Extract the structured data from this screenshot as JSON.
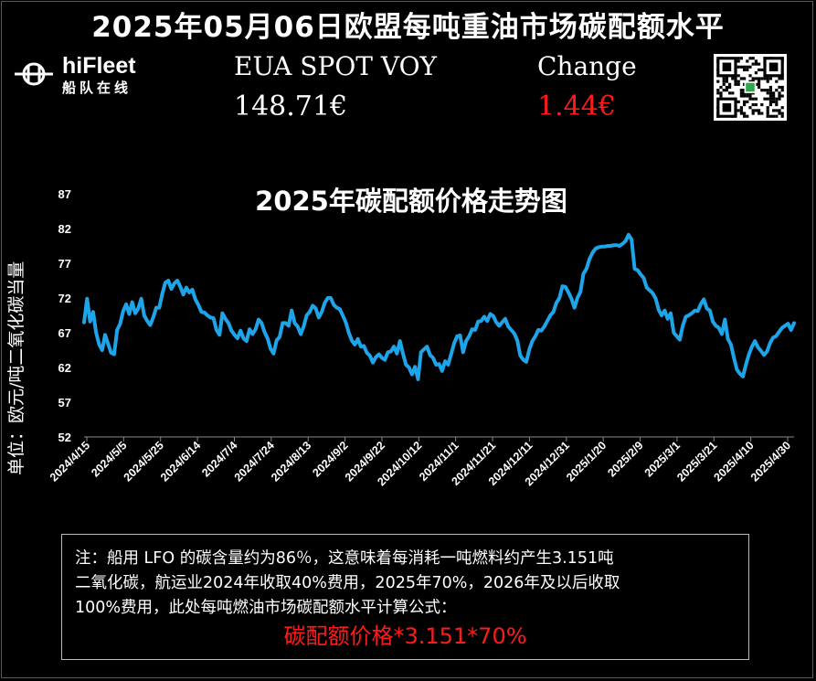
{
  "header": {
    "title": "2025年05月06日欧盟每吨重油市场碳配额水平"
  },
  "logo": {
    "name": "hiFleet",
    "sub": "船队在线"
  },
  "metrics": {
    "spot_label": "EUA SPOT VOY",
    "spot_value": "148.71€",
    "change_label": "Change",
    "change_value": "1.44€",
    "change_color": "#ff1a1a"
  },
  "chart_data": {
    "type": "line",
    "title": "2025年碳配额价格走势图",
    "ylabel": "单位：欧元/吨二氧化碳当量",
    "ylim": [
      52,
      87
    ],
    "y_ticks": [
      "87",
      "82",
      "77",
      "72",
      "67",
      "62",
      "57",
      "52"
    ],
    "x_tick_labels": [
      "2024/4/15",
      "2024/5/5",
      "2024/5/25",
      "2024/6/14",
      "2024/7/4",
      "2024/7/24",
      "2024/8/13",
      "2024/9/2",
      "2024/9/22",
      "2024/10/12",
      "2024/11/1",
      "2024/11/21",
      "2024/12/11",
      "2024/12/31",
      "2025/1/20",
      "2025/2/9",
      "2025/3/1",
      "2025/3/21",
      "2025/4/10",
      "2025/4/30"
    ],
    "line_color": "#1ea4e9",
    "series": [
      {
        "values": [
          [
            0,
            68.5
          ],
          [
            1,
            71.9
          ],
          [
            2,
            68.6
          ],
          [
            3,
            70.0
          ],
          [
            4,
            67.0
          ],
          [
            5,
            65.3
          ],
          [
            6,
            64.5
          ],
          [
            7,
            66.7
          ],
          [
            8,
            65.4
          ],
          [
            9,
            64.1
          ],
          [
            10,
            63.9
          ],
          [
            11,
            67.4
          ],
          [
            12,
            68.3
          ],
          [
            13,
            70.1
          ],
          [
            14,
            71.1
          ],
          [
            15,
            69.7
          ],
          [
            16,
            71.4
          ],
          [
            17,
            69.8
          ],
          [
            18,
            70.5
          ],
          [
            19,
            71.9
          ],
          [
            20,
            69.5
          ],
          [
            21,
            68.7
          ],
          [
            22,
            68.1
          ],
          [
            23,
            69.2
          ],
          [
            24,
            70.6
          ],
          [
            25,
            70.6
          ],
          [
            26,
            72.6
          ],
          [
            27,
            74.2
          ],
          [
            28,
            74.5
          ],
          [
            29,
            73.3
          ],
          [
            30,
            74.1
          ],
          [
            31,
            74.5
          ],
          [
            32,
            73.6
          ],
          [
            33,
            72.5
          ],
          [
            34,
            73.5
          ],
          [
            35,
            72.8
          ],
          [
            36,
            73.2
          ],
          [
            37,
            71.8
          ],
          [
            38,
            71.0
          ],
          [
            39,
            70.0
          ],
          [
            40,
            69.9
          ],
          [
            41,
            69.5
          ],
          [
            42,
            69.2
          ],
          [
            43,
            69.1
          ],
          [
            44,
            67.4
          ],
          [
            45,
            66.7
          ],
          [
            46,
            69.8
          ],
          [
            47,
            69.0
          ],
          [
            48,
            68.4
          ],
          [
            49,
            67.3
          ],
          [
            50,
            66.7
          ],
          [
            51,
            66.2
          ],
          [
            52,
            67.3
          ],
          [
            53,
            66.2
          ],
          [
            54,
            65.8
          ],
          [
            55,
            67.5
          ],
          [
            56,
            66.8
          ],
          [
            57,
            67.5
          ],
          [
            58,
            68.9
          ],
          [
            59,
            68.4
          ],
          [
            60,
            67.1
          ],
          [
            61,
            66.2
          ],
          [
            62,
            64.7
          ],
          [
            63,
            64.0
          ],
          [
            64,
            65.9
          ],
          [
            65,
            66.4
          ],
          [
            66,
            68.4
          ],
          [
            67,
            68.4
          ],
          [
            68,
            68.0
          ],
          [
            69,
            70.2
          ],
          [
            70,
            68.4
          ],
          [
            71,
            67.9
          ],
          [
            72,
            66.8
          ],
          [
            73,
            67.9
          ],
          [
            74,
            69.5
          ],
          [
            75,
            70.0
          ],
          [
            76,
            70.9
          ],
          [
            77,
            70.5
          ],
          [
            78,
            69.2
          ],
          [
            79,
            70.0
          ],
          [
            80,
            71.3
          ],
          [
            81,
            72.0
          ],
          [
            82,
            72.0
          ],
          [
            83,
            71.0
          ],
          [
            84,
            70.6
          ],
          [
            85,
            70.4
          ],
          [
            86,
            69.5
          ],
          [
            87,
            68.5
          ],
          [
            88,
            67.0
          ],
          [
            89,
            65.9
          ],
          [
            90,
            65.3
          ],
          [
            91,
            66.1
          ],
          [
            92,
            65.0
          ],
          [
            93,
            65.1
          ],
          [
            94,
            64.1
          ],
          [
            95,
            63.7
          ],
          [
            96,
            62.7
          ],
          [
            97,
            63.5
          ],
          [
            98,
            63.9
          ],
          [
            99,
            63.4
          ],
          [
            100,
            63.1
          ],
          [
            101,
            64.2
          ],
          [
            102,
            64.3
          ],
          [
            103,
            65.0
          ],
          [
            104,
            64.0
          ],
          [
            105,
            65.8
          ],
          [
            106,
            64.0
          ],
          [
            107,
            62.4
          ],
          [
            108,
            62.0
          ],
          [
            109,
            61.0
          ],
          [
            110,
            62.1
          ],
          [
            111,
            60.3
          ],
          [
            112,
            64.2
          ],
          [
            113,
            64.6
          ],
          [
            114,
            65.0
          ],
          [
            115,
            63.8
          ],
          [
            116,
            63.4
          ],
          [
            117,
            62.4
          ],
          [
            118,
            62.5
          ],
          [
            119,
            61.5
          ],
          [
            120,
            62.9
          ],
          [
            121,
            62.4
          ],
          [
            122,
            63.9
          ],
          [
            123,
            65.5
          ],
          [
            124,
            66.5
          ],
          [
            125,
            66.6
          ],
          [
            126,
            64.2
          ],
          [
            127,
            65.8
          ],
          [
            128,
            66.5
          ],
          [
            129,
            67.5
          ],
          [
            130,
            67.4
          ],
          [
            131,
            68.6
          ],
          [
            132,
            68.7
          ],
          [
            133,
            69.3
          ],
          [
            134,
            68.7
          ],
          [
            135,
            69.7
          ],
          [
            136,
            69.4
          ],
          [
            137,
            68.5
          ],
          [
            138,
            68.0
          ],
          [
            139,
            68.5
          ],
          [
            140,
            69.0
          ],
          [
            141,
            67.9
          ],
          [
            142,
            67.4
          ],
          [
            143,
            66.9
          ],
          [
            144,
            65.9
          ],
          [
            145,
            63.7
          ],
          [
            146,
            63.1
          ],
          [
            147,
            62.8
          ],
          [
            148,
            64.6
          ],
          [
            149,
            65.8
          ],
          [
            150,
            66.5
          ],
          [
            151,
            67.4
          ],
          [
            152,
            67.3
          ],
          [
            153,
            67.9
          ],
          [
            154,
            68.7
          ],
          [
            155,
            69.5
          ],
          [
            156,
            70.0
          ],
          [
            157,
            71.3
          ],
          [
            158,
            72.0
          ],
          [
            159,
            73.7
          ],
          [
            160,
            73.6
          ],
          [
            161,
            72.8
          ],
          [
            162,
            71.9
          ],
          [
            163,
            70.6
          ],
          [
            164,
            72.0
          ],
          [
            165,
            72.9
          ],
          [
            166,
            75.5
          ],
          [
            167,
            76.2
          ],
          [
            168,
            77.6
          ],
          [
            169,
            78.5
          ],
          [
            170,
            79.1
          ],
          [
            171,
            79.3
          ],
          [
            172,
            79.4
          ],
          [
            173,
            79.4
          ],
          [
            174,
            79.5
          ],
          [
            175,
            79.5
          ],
          [
            176,
            79.6
          ],
          [
            177,
            79.6
          ],
          [
            178,
            79.5
          ],
          [
            179,
            79.8
          ],
          [
            180,
            80.2
          ],
          [
            181,
            81.1
          ],
          [
            182,
            80.4
          ],
          [
            183,
            76.2
          ],
          [
            184,
            76.0
          ],
          [
            185,
            75.4
          ],
          [
            186,
            74.9
          ],
          [
            187,
            73.5
          ],
          [
            188,
            73.1
          ],
          [
            189,
            72.7
          ],
          [
            190,
            71.9
          ],
          [
            191,
            70.3
          ],
          [
            192,
            69.5
          ],
          [
            193,
            70.2
          ],
          [
            194,
            69.0
          ],
          [
            195,
            69.8
          ],
          [
            196,
            67.0
          ],
          [
            197,
            66.5
          ],
          [
            198,
            66.0
          ],
          [
            199,
            68.0
          ],
          [
            200,
            69.3
          ],
          [
            201,
            69.5
          ],
          [
            202,
            69.8
          ],
          [
            203,
            70.2
          ],
          [
            204,
            70.1
          ],
          [
            205,
            71.1
          ],
          [
            206,
            71.8
          ],
          [
            207,
            70.5
          ],
          [
            208,
            70.2
          ],
          [
            209,
            68.6
          ],
          [
            210,
            68.0
          ],
          [
            211,
            67.7
          ],
          [
            212,
            66.8
          ],
          [
            213,
            68.9
          ],
          [
            214,
            66.1
          ],
          [
            215,
            65.3
          ],
          [
            216,
            63.4
          ],
          [
            217,
            61.7
          ],
          [
            218,
            61.1
          ],
          [
            219,
            60.7
          ],
          [
            220,
            62.4
          ],
          [
            221,
            63.9
          ],
          [
            222,
            65.0
          ],
          [
            223,
            65.8
          ],
          [
            224,
            64.9
          ],
          [
            225,
            64.4
          ],
          [
            226,
            63.8
          ],
          [
            227,
            64.3
          ],
          [
            228,
            65.5
          ],
          [
            229,
            66.3
          ],
          [
            230,
            66.5
          ],
          [
            231,
            67.1
          ],
          [
            232,
            67.7
          ],
          [
            233,
            68.0
          ],
          [
            234,
            68.3
          ],
          [
            235,
            67.4
          ],
          [
            236,
            68.4
          ]
        ]
      }
    ],
    "x_domain": [
      0,
      236
    ]
  },
  "note": {
    "line1": "注：船用 LFO 的碳含量约为86％，这意味着每消耗一吨燃料约产生3.151吨",
    "line2": "二氧化碳，航运业2024年收取40%费用，2025年70%，2026年及以后收取",
    "line3": "100%费用，此处每吨燃油市场碳配额水平计算公式：",
    "formula": "碳配额价格*3.151*70%"
  }
}
